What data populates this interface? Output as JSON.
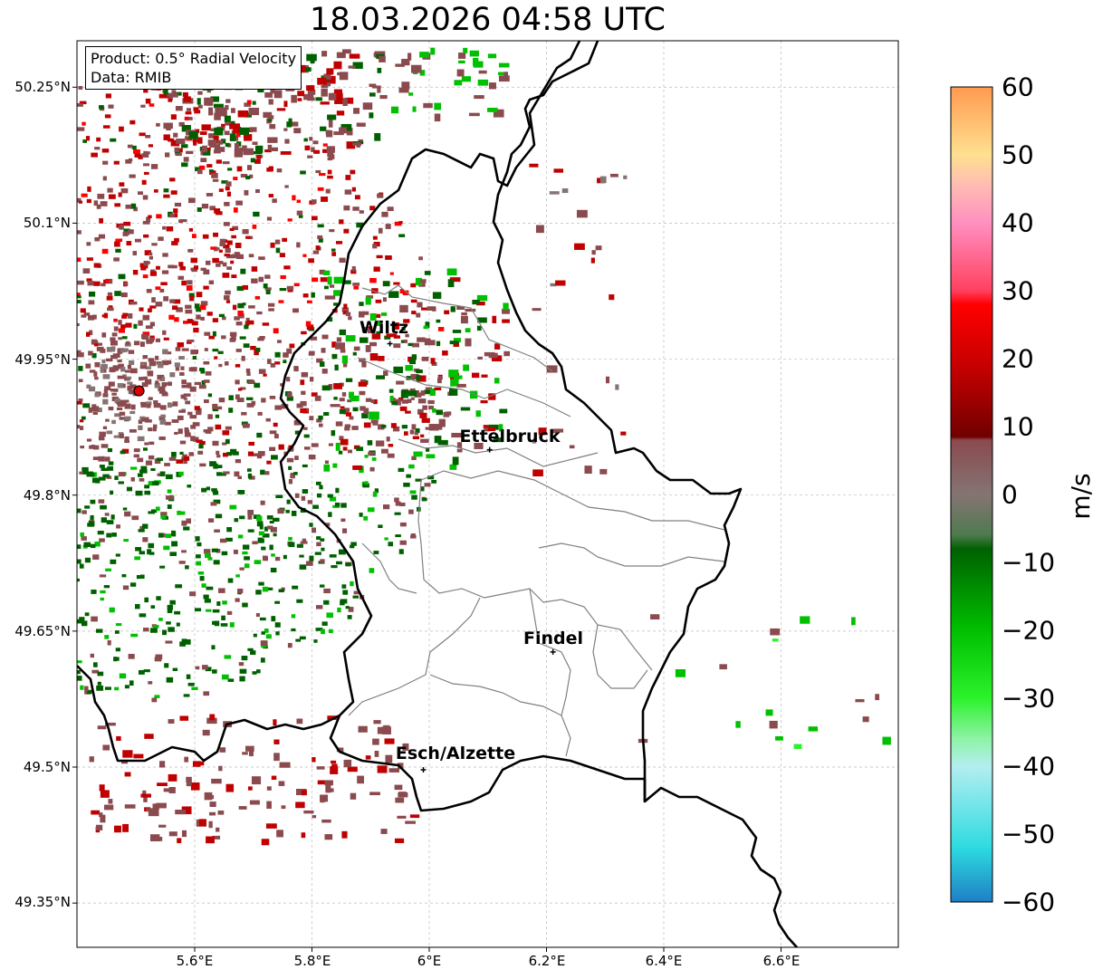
{
  "title": "18.03.2026 04:58 UTC",
  "info": {
    "product": "Product: 0.5° Radial Velocity",
    "data": "Data: RMIB"
  },
  "axes": {
    "lat_labels": [
      "50.25°N",
      "50.1°N",
      "49.95°N",
      "49.8°N",
      "49.65°N",
      "49.5°N",
      "49.35°N"
    ],
    "lon_labels": [
      "5.6°E",
      "5.8°E",
      "6°E",
      "6.2°E",
      "6.4°E",
      "6.6°E"
    ]
  },
  "cities": [
    {
      "name": "Wiltz",
      "lon": 5.933,
      "lat": 49.967
    },
    {
      "name": "Ettelbruck",
      "lon": 6.103,
      "lat": 49.85
    },
    {
      "name": "Findel",
      "lon": 6.211,
      "lat": 49.627
    },
    {
      "name": "Esch/Alzette",
      "lon": 5.99,
      "lat": 49.497
    }
  ],
  "radar_site": {
    "lon": 5.505,
    "lat": 49.915,
    "color": "#e00000"
  },
  "colorbar": {
    "unit": "m/s",
    "ticks": [
      "60",
      "50",
      "40",
      "30",
      "20",
      "10",
      "0",
      "−10",
      "−20",
      "−30",
      "−40",
      "−50",
      "−60"
    ],
    "min": -60,
    "max": 60,
    "stops": [
      {
        "v": -60,
        "color": "#1f7fc4"
      },
      {
        "v": -52,
        "color": "#2ddbe0"
      },
      {
        "v": -40,
        "color": "#b3eef0"
      },
      {
        "v": -36,
        "color": "#8ff3a6"
      },
      {
        "v": -30,
        "color": "#2cf22c"
      },
      {
        "v": -20,
        "color": "#00c000"
      },
      {
        "v": -8,
        "color": "#006000"
      },
      {
        "v": -6,
        "color": "#4e7a4e"
      },
      {
        "v": 0,
        "color": "#857474"
      },
      {
        "v": 8,
        "color": "#8a4a4e"
      },
      {
        "v": 8.5,
        "color": "#700000"
      },
      {
        "v": 18,
        "color": "#c00000"
      },
      {
        "v": 28,
        "color": "#ff0000"
      },
      {
        "v": 30,
        "color": "#ff4060"
      },
      {
        "v": 40,
        "color": "#ff90c0"
      },
      {
        "v": 46,
        "color": "#ffc0b0"
      },
      {
        "v": 50,
        "color": "#ffe090"
      },
      {
        "v": 60,
        "color": "#ff9a50"
      }
    ]
  }
}
